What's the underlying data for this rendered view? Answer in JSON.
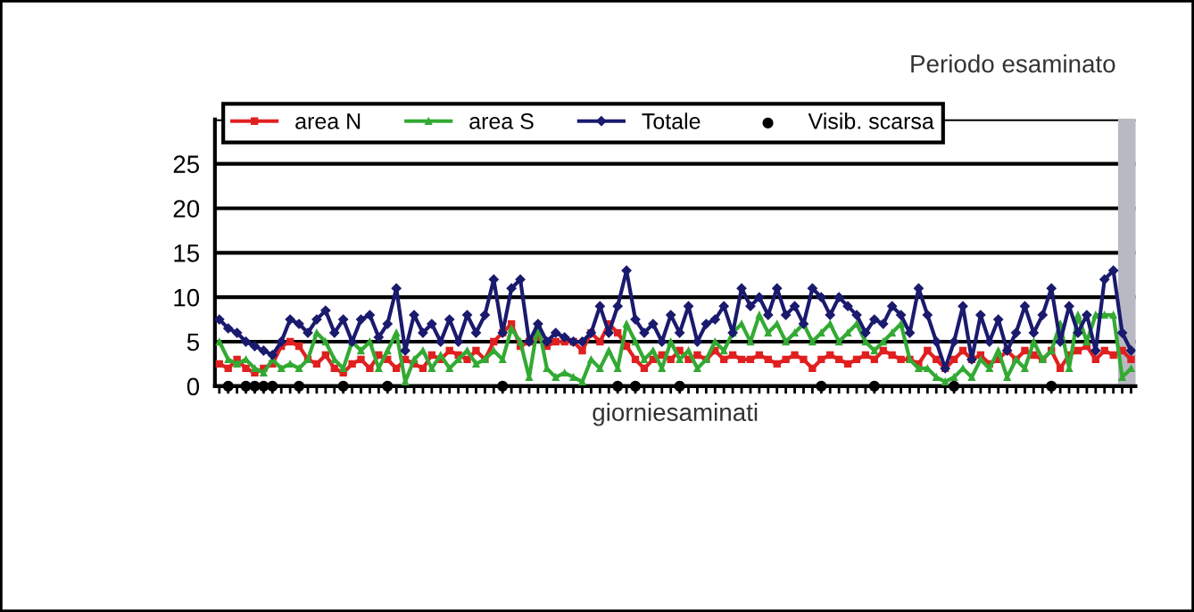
{
  "chart_data": {
    "type": "line",
    "xlabel": "giorniesaminati",
    "categories": [
      null,
      null,
      null,
      null,
      null,
      null,
      null,
      null,
      null,
      null,
      null,
      null,
      null,
      null,
      null,
      null,
      null,
      null,
      null,
      null,
      null,
      null,
      null,
      null,
      null,
      null,
      null,
      null,
      null,
      null,
      null,
      null,
      null,
      null,
      null,
      null,
      null,
      null,
      null,
      null,
      null,
      null,
      null,
      null,
      null,
      null,
      null,
      null,
      null,
      null,
      null,
      null,
      null,
      null,
      null,
      null,
      null,
      null,
      null,
      null,
      null,
      null,
      null,
      null,
      null,
      null,
      null,
      null,
      null,
      null,
      null,
      null,
      null,
      null,
      null,
      null,
      null,
      null,
      null,
      null,
      null,
      null,
      null,
      null,
      null,
      null,
      null,
      null,
      null,
      null,
      null,
      null,
      null,
      null,
      null,
      null,
      null,
      null,
      null,
      null,
      null,
      null,
      null,
      null
    ],
    "series": [
      {
        "name": "area N",
        "color": "#e02020",
        "marker": "square",
        "values": [
          2.5,
          2,
          3,
          2,
          1.5,
          2,
          2.5,
          4.5,
          5,
          4.5,
          3,
          2.5,
          3.5,
          2,
          1.5,
          2.5,
          3,
          2,
          3.5,
          3,
          2,
          3,
          2.5,
          2,
          3.5,
          3,
          4,
          3.5,
          3,
          4,
          3,
          5,
          6,
          7,
          4.5,
          5,
          5.5,
          4.5,
          5,
          5,
          5,
          4,
          6,
          5,
          7,
          6,
          4.5,
          3,
          2,
          3,
          3.5,
          3,
          4,
          3,
          3.5,
          3,
          4,
          3,
          3.5,
          3,
          3,
          3.5,
          3,
          2.5,
          3,
          3.5,
          3,
          2,
          3,
          3.5,
          3,
          2.5,
          3,
          3.5,
          3,
          4,
          3.5,
          3,
          3,
          2.5,
          4,
          3,
          2,
          3,
          4,
          3,
          3.5,
          2.5,
          3,
          4,
          3,
          4,
          3.5,
          3,
          4,
          2,
          3.5,
          4,
          4.5,
          3,
          4,
          3.5,
          4,
          3
        ]
      },
      {
        "name": "area S",
        "color": "#33aa33",
        "marker": "triangle",
        "values": [
          5,
          3,
          2.5,
          3,
          2,
          1.5,
          3,
          2,
          2.5,
          2,
          3,
          6,
          5,
          3,
          2,
          5,
          4,
          5,
          2,
          4,
          6,
          0.5,
          3,
          4,
          2,
          3.5,
          2,
          3,
          4,
          2.5,
          3,
          4,
          3,
          6.5,
          5,
          1,
          7,
          2,
          1,
          1.5,
          1,
          0.5,
          3,
          2,
          4,
          2,
          7,
          5,
          3,
          4,
          2,
          5,
          3,
          4,
          2,
          3,
          5,
          4,
          6,
          7,
          5,
          8,
          6,
          7,
          5,
          6,
          7,
          5,
          6,
          7,
          5,
          6,
          7,
          5,
          4,
          5,
          6,
          7,
          3,
          2,
          2,
          1,
          0.5,
          1,
          2,
          1,
          3,
          2,
          4,
          1,
          3,
          2,
          5,
          3,
          4,
          7,
          2,
          8,
          5,
          8,
          8,
          8,
          1,
          2
        ]
      },
      {
        "name": "Totale",
        "color": "#1a1a6e",
        "marker": "diamond",
        "values": [
          7.5,
          6.5,
          6,
          5,
          4.5,
          4,
          3.5,
          5,
          7.5,
          7,
          6,
          7.5,
          8.5,
          6,
          7.5,
          5,
          7.5,
          8,
          5.5,
          7,
          11,
          4,
          8,
          6,
          7,
          5,
          7.5,
          5,
          8,
          6,
          8,
          12,
          6,
          11,
          12,
          5,
          7,
          5,
          6,
          5.5,
          5,
          5,
          6,
          9,
          6,
          9,
          13,
          7.5,
          6,
          7,
          5,
          8,
          6,
          9,
          5,
          7,
          7.5,
          9,
          6,
          11,
          9,
          10,
          8,
          11,
          8,
          9,
          7,
          11,
          10,
          8,
          10,
          9,
          8,
          6,
          7.5,
          7,
          9,
          8,
          6,
          11,
          8,
          5,
          2,
          5,
          9,
          3,
          8,
          5,
          7.5,
          4,
          6,
          9,
          6,
          8,
          11,
          5,
          9,
          6,
          8,
          4,
          12,
          13,
          6,
          4
        ]
      },
      {
        "name": "Visib. scarsa",
        "type": "scatter",
        "color": "#000000",
        "marker": "circle",
        "values": [
          null,
          0,
          null,
          0,
          0,
          0,
          0,
          null,
          null,
          0,
          null,
          null,
          null,
          null,
          0,
          null,
          null,
          null,
          null,
          0,
          null,
          null,
          null,
          null,
          null,
          null,
          null,
          null,
          null,
          null,
          null,
          null,
          0,
          null,
          null,
          null,
          null,
          null,
          null,
          null,
          null,
          null,
          null,
          null,
          null,
          0,
          null,
          0,
          null,
          null,
          null,
          null,
          0,
          null,
          null,
          null,
          null,
          null,
          null,
          null,
          null,
          null,
          null,
          null,
          null,
          null,
          null,
          null,
          0,
          null,
          null,
          null,
          null,
          null,
          0,
          null,
          null,
          null,
          null,
          null,
          null,
          null,
          null,
          0,
          null,
          null,
          null,
          null,
          null,
          null,
          null,
          null,
          null,
          null,
          0,
          null,
          null,
          null,
          null,
          null,
          null,
          null,
          null,
          null
        ]
      }
    ],
    "ylim": [
      0,
      30
    ],
    "yticks": [
      0,
      5,
      10,
      15,
      20,
      25,
      {
        "value": 30,
        "label": null
      }
    ],
    "grid": "y",
    "legend": "top",
    "annotations": [
      "Periodo esaminato"
    ]
  }
}
